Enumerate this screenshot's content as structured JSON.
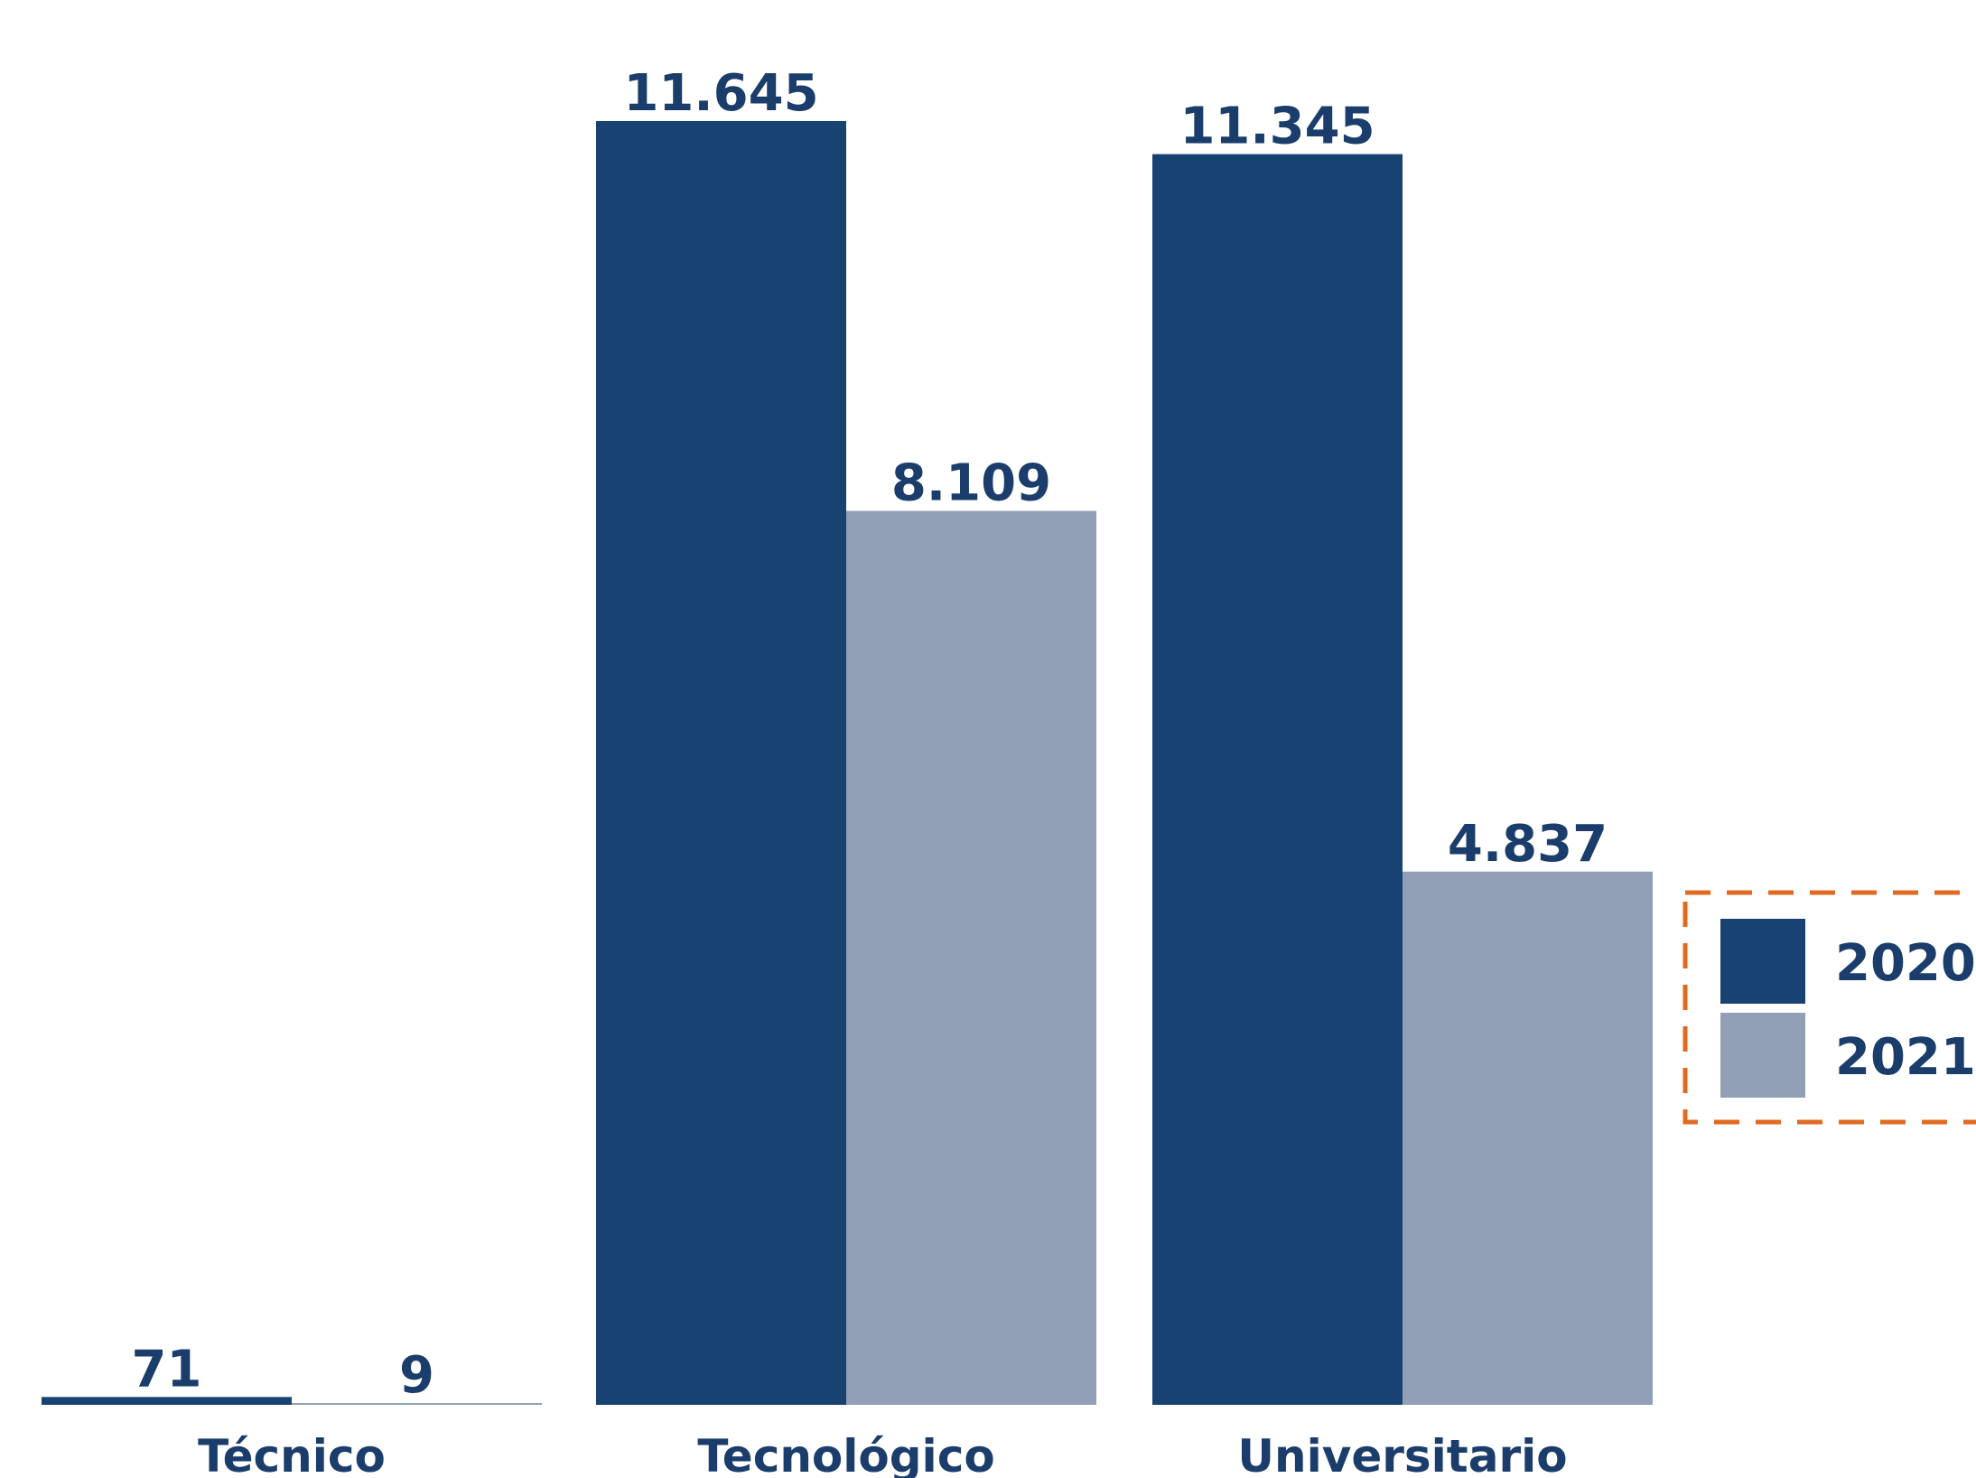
{
  "colors": {
    "series_2020": "#174271",
    "series_2021": "#91a0b6",
    "label_text": "#1a3d6b",
    "legend_border": "#e06a22"
  },
  "chart_data": {
    "type": "bar",
    "title": "",
    "xlabel": "",
    "ylabel": "",
    "categories": [
      "Técnico",
      "Tecnológico",
      "Universitario"
    ],
    "series": [
      {
        "name": "2020",
        "values": [
          71,
          11645,
          11345
        ],
        "labels": [
          "71",
          "11.645",
          "11.345"
        ]
      },
      {
        "name": "2021",
        "values": [
          9,
          8109,
          4837
        ],
        "labels": [
          "9",
          "8.109",
          "4.837"
        ]
      }
    ],
    "ylim": [
      0,
      11645
    ],
    "grid": false,
    "legend": "right"
  }
}
